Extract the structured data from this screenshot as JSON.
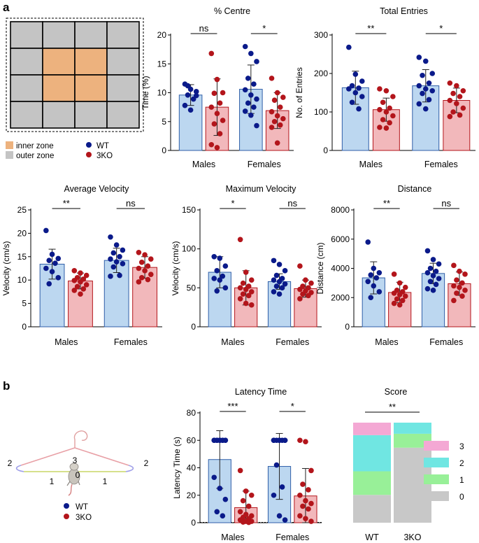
{
  "panel_labels": [
    "a",
    "b"
  ],
  "zone_legend": {
    "inner": "inner zone",
    "outer": "outer zone",
    "inner_color": "#EDB27E",
    "outer_color": "#C4C4C4"
  },
  "genotype_legend": {
    "wt": "WT",
    "ko": "3KO",
    "wt_color": "#0A1A8A",
    "ko_color": "#B3151B"
  },
  "colors": {
    "wt_fill": "#BCD7F0",
    "wt_stroke": "#2F5EA8",
    "ko_fill": "#F2B8BB",
    "ko_stroke": "#B3151B"
  },
  "hanger": {
    "center_score": "0",
    "left_inner": "1",
    "right_inner": "1",
    "left_outer": "2",
    "right_outer": "2",
    "top": "3"
  },
  "chart_data": [
    {
      "type": "bar",
      "title": "% Centre",
      "ylabel": "Time (%)",
      "categories": [
        "Males",
        "Females"
      ],
      "ylim": [
        0,
        20
      ],
      "yticks": [
        0,
        5,
        10,
        15,
        20
      ],
      "series": [
        {
          "name": "WT",
          "means": [
            9.6,
            10.6
          ],
          "errors": [
            1.8,
            4.2
          ],
          "points": [
            [
              11.5,
              10.6,
              10.2,
              9.6,
              8.9,
              7.8,
              7.0,
              9.5,
              11.2
            ],
            [
              18.0,
              16.8,
              15.4,
              12.5,
              11.5,
              10.5,
              9.6,
              8.9,
              8.2,
              7.5,
              6.8,
              6.1,
              4.3
            ]
          ]
        },
        {
          "name": "3KO",
          "means": [
            7.5,
            6.9
          ],
          "errors": [
            4.9,
            3.1
          ],
          "points": [
            [
              16.8,
              12.3,
              10.0,
              9.9,
              8.2,
              7.5,
              6.4,
              5.2,
              4.6,
              2.9,
              1.0,
              0.5
            ],
            [
              12.5,
              10.0,
              9.2,
              8.7,
              7.5,
              6.7,
              6.0,
              5.5,
              5.0,
              4.4,
              4.0,
              1.3
            ]
          ]
        }
      ],
      "significance": [
        "ns",
        "*"
      ]
    },
    {
      "type": "bar",
      "title": "Total Entries",
      "ylabel": "No. of Entries",
      "categories": [
        "Males",
        "Females"
      ],
      "ylim": [
        0,
        300
      ],
      "yticks": [
        0,
        100,
        200,
        300
      ],
      "series": [
        {
          "name": "WT",
          "means": [
            163,
            168
          ],
          "errors": [
            43,
            42
          ],
          "points": [
            [
              268,
              198,
              180,
              168,
              162,
              160,
              150,
              140,
              125,
              108
            ],
            [
              242,
              232,
              200,
              195,
              175,
              168,
              160,
              155,
              148,
              132,
              121,
              108
            ]
          ]
        },
        {
          "name": "3KO",
          "means": [
            106,
            130
          ],
          "errors": [
            30,
            32
          ],
          "points": [
            [
              160,
              155,
              140,
              125,
              110,
              106,
              100,
              90,
              80,
              72,
              60,
              58
            ],
            [
              175,
              168,
              155,
              148,
              140,
              130,
              122,
              110,
              100,
              92,
              88
            ]
          ]
        }
      ],
      "significance": [
        "**",
        "*"
      ]
    },
    {
      "type": "bar",
      "title": "Average Velocity",
      "ylabel": "Velocity (cm/s)",
      "categories": [
        "Males",
        "Females"
      ],
      "ylim": [
        0,
        25
      ],
      "yticks": [
        0,
        5,
        10,
        15,
        20,
        25
      ],
      "series": [
        {
          "name": "WT",
          "means": [
            13.4,
            14.2
          ],
          "errors": [
            3.2,
            2.6
          ],
          "points": [
            [
              20.6,
              15.5,
              14.6,
              14.2,
              13.6,
              12.5,
              11.8,
              10.5,
              9.2
            ],
            [
              19.2,
              17.5,
              16.4,
              15.8,
              15.0,
              14.5,
              13.9,
              13.5,
              12.8,
              11.0,
              10.8
            ]
          ]
        },
        {
          "name": "3KO",
          "means": [
            9.8,
            12.7
          ],
          "errors": [
            1.7,
            2.3
          ],
          "points": [
            [
              12.0,
              11.5,
              11.0,
              10.5,
              10.2,
              9.9,
              9.6,
              9.0,
              8.6,
              8.1,
              7.8,
              7.0
            ],
            [
              15.9,
              15.4,
              14.5,
              13.8,
              13.0,
              12.5,
              12.0,
              11.2,
              10.5,
              10.1,
              9.6
            ]
          ]
        }
      ],
      "significance": [
        "**",
        "ns"
      ]
    },
    {
      "type": "bar",
      "title": "Maximum Velocity",
      "ylabel": "Velocity (cm/s)",
      "categories": [
        "Males",
        "Females"
      ],
      "ylim": [
        0,
        150
      ],
      "yticks": [
        0,
        50,
        100,
        150
      ],
      "series": [
        {
          "name": "WT",
          "means": [
            70,
            58
          ],
          "errors": [
            20,
            10
          ],
          "points": [
            [
              90,
              88,
              78,
              72,
              65,
              62,
              60,
              50,
              46
            ],
            [
              85,
              80,
              72,
              66,
              62,
              60,
              58,
              55,
              52,
              50,
              45,
              42
            ]
          ]
        },
        {
          "name": "3KO",
          "means": [
            50,
            49
          ],
          "errors": [
            22,
            11
          ],
          "points": [
            [
              112,
              70,
              60,
              56,
              52,
              50,
              48,
              45,
              42,
              40,
              36,
              30,
              28
            ],
            [
              78,
              60,
              56,
              52,
              50,
              48,
              46,
              44,
              42,
              40,
              36
            ]
          ]
        }
      ],
      "significance": [
        "*",
        "ns"
      ]
    },
    {
      "type": "bar",
      "title": "Distance",
      "ylabel": "Distance (cm)",
      "categories": [
        "Males",
        "Females"
      ],
      "ylim": [
        0,
        8000
      ],
      "yticks": [
        0,
        2000,
        4000,
        6000,
        8000
      ],
      "series": [
        {
          "name": "WT",
          "means": [
            3350,
            3650
          ],
          "errors": [
            1100,
            700
          ],
          "points": [
            [
              5800,
              4000,
              3700,
              3550,
              3350,
              3100,
              2800,
              2400,
              2000
            ],
            [
              5200,
              4600,
              4300,
              4000,
              3800,
              3700,
              3500,
              3300,
              3100,
              2900,
              2600,
              2500
            ]
          ]
        },
        {
          "name": "3KO",
          "means": [
            2350,
            2950
          ],
          "errors": [
            700,
            800
          ],
          "points": [
            [
              3600,
              3000,
              2700,
              2500,
              2400,
              2300,
              2200,
              2100,
              1900,
              1800,
              1600,
              1500
            ],
            [
              4200,
              3800,
              3600,
              3200,
              3000,
              2800,
              2700,
              2500,
              2300,
              2100,
              1800
            ]
          ]
        }
      ],
      "significance": [
        "**",
        "ns"
      ]
    },
    {
      "type": "bar",
      "title": "Latency Time",
      "ylabel": "Latency Time (s)",
      "categories": [
        "Males",
        "Females"
      ],
      "ylim": [
        0,
        80
      ],
      "yticks": [
        0,
        20,
        40,
        60,
        80
      ],
      "series": [
        {
          "name": "WT",
          "means": [
            46,
            41
          ],
          "errors": [
            21,
            24
          ],
          "points": [
            [
              60,
              60,
              60,
              60,
              60,
              60,
              60,
              60,
              60,
              60,
              33,
              25,
              17,
              8,
              5
            ],
            [
              60,
              60,
              60,
              60,
              60,
              60,
              60,
              60,
              42,
              26,
              20,
              5,
              2
            ]
          ]
        },
        {
          "name": "3KO",
          "means": [
            11,
            19.5
          ],
          "errors": [
            12,
            20
          ],
          "points": [
            [
              38,
              23,
              20,
              16,
              12,
              8,
              6,
              5,
              4,
              3,
              2,
              1,
              1,
              0.5,
              0.2
            ],
            [
              60,
              59,
              38,
              28,
              24,
              20,
              16,
              14,
              12,
              10,
              5,
              3,
              1
            ]
          ]
        }
      ],
      "significance": [
        "***",
        "*"
      ]
    },
    {
      "type": "stacked_bar",
      "title": "Score",
      "categories": [
        "WT",
        "3KO"
      ],
      "levels": [
        "0",
        "1",
        "2",
        "3"
      ],
      "level_colors": {
        "0": "#C8C8C8",
        "1": "#98F098",
        "2": "#70E6E2",
        "3": "#F4A8D4"
      },
      "values": {
        "WT": [
          20,
          17,
          26,
          9
        ],
        "3KO": [
          54,
          10,
          8,
          0
        ]
      },
      "total": 72,
      "significance": "**"
    }
  ]
}
